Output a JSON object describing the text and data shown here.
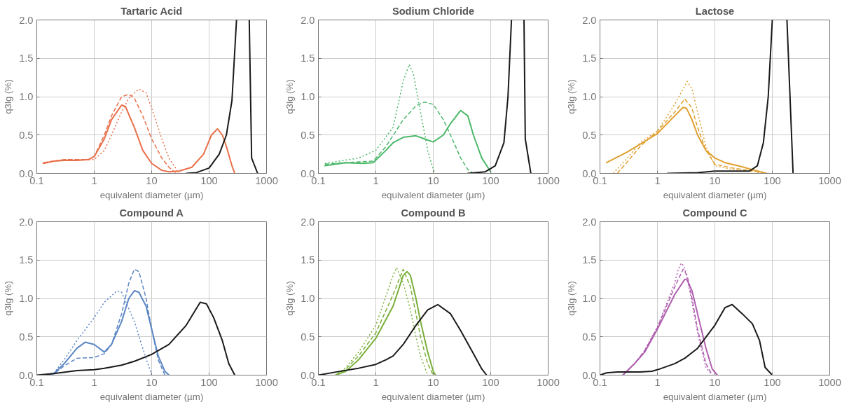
{
  "chart_data": [
    {
      "type": "line",
      "title": "Tartaric Acid",
      "xlabel": "equivalent diameter (µm)",
      "ylabel": "q3lg (%)",
      "log": "x",
      "xlim": [
        0.1,
        1000
      ],
      "ylim": [
        0,
        2
      ],
      "xticks": [
        0.1,
        1,
        10,
        100,
        1000
      ],
      "yticks": [
        {
          "value": 0,
          "label": "0.0"
        },
        {
          "value": 0.5,
          "label": "0.5"
        },
        {
          "value": 1,
          "label": "1.0"
        },
        {
          "value": 1.5,
          "label": "1.5"
        },
        {
          "value": 2,
          "label": "2.0"
        }
      ],
      "grid": true,
      "series": [
        {
          "color": "#e8704a",
          "line_style": "solid",
          "x": [
            0.13,
            0.2,
            0.3,
            0.5,
            0.8,
            1,
            1.5,
            2,
            3,
            3.5,
            5,
            7,
            10,
            15,
            20,
            30,
            50,
            80,
            110,
            140,
            170,
            200,
            250,
            280
          ],
          "values": [
            0.13,
            0.16,
            0.17,
            0.17,
            0.18,
            0.22,
            0.45,
            0.7,
            0.89,
            0.87,
            0.6,
            0.3,
            0.13,
            0.04,
            0.02,
            0.03,
            0.08,
            0.25,
            0.5,
            0.58,
            0.5,
            0.35,
            0.1,
            0
          ]
        },
        {
          "color": "#e8704a",
          "line_style": "dashed",
          "x": [
            0.13,
            0.3,
            0.8,
            1,
            1.5,
            2,
            3,
            4,
            5,
            7,
            10,
            15,
            20,
            25,
            30
          ],
          "values": [
            0.14,
            0.18,
            0.18,
            0.22,
            0.5,
            0.75,
            1.0,
            1.03,
            0.98,
            0.75,
            0.45,
            0.2,
            0.08,
            0.02,
            0
          ]
        },
        {
          "color": "#e8704a",
          "line_style": "dotted",
          "x": [
            0.13,
            0.3,
            1,
            1.5,
            2,
            3,
            4,
            6,
            8,
            10,
            15,
            20,
            30
          ],
          "values": [
            0.14,
            0.18,
            0.18,
            0.3,
            0.5,
            0.8,
            0.98,
            1.1,
            1.05,
            0.85,
            0.45,
            0.2,
            0
          ]
        },
        {
          "color": "#1a1a1a",
          "line_style": "solid",
          "x": [
            40,
            60,
            100,
            150,
            200,
            250,
            300,
            400,
            500,
            550,
            700
          ],
          "values": [
            0,
            0.01,
            0.07,
            0.25,
            0.5,
            0.95,
            2.0,
            null,
            2.0,
            0.2,
            0
          ]
        }
      ]
    },
    {
      "type": "line",
      "title": "Sodium Chloride",
      "xlabel": "equivalent diameter (µm)",
      "ylabel": "q3lg (%)",
      "log": "x",
      "xlim": [
        0.1,
        1000
      ],
      "ylim": [
        0,
        2
      ],
      "xticks": [
        0.1,
        1,
        10,
        100,
        1000
      ],
      "yticks": [
        {
          "value": 0,
          "label": "0.0"
        },
        {
          "value": 0.5,
          "label": "0.5"
        },
        {
          "value": 1,
          "label": "1.0"
        },
        {
          "value": 1.5,
          "label": "1.5"
        },
        {
          "value": 2,
          "label": "2.0"
        }
      ],
      "grid": true,
      "series": [
        {
          "color": "#4cb86a",
          "line_style": "solid",
          "x": [
            0.13,
            0.3,
            0.6,
            0.9,
            1.5,
            2,
            3,
            5,
            7,
            10,
            15,
            20,
            30,
            40,
            50,
            70,
            100
          ],
          "values": [
            0.1,
            0.14,
            0.13,
            0.14,
            0.3,
            0.4,
            0.47,
            0.49,
            0.45,
            0.41,
            0.5,
            0.65,
            0.82,
            0.75,
            0.5,
            0.2,
            0.02
          ]
        },
        {
          "color": "#4cb86a",
          "line_style": "dashed",
          "x": [
            0.13,
            0.3,
            0.9,
            1.5,
            3,
            5,
            7,
            10,
            15,
            20,
            30,
            40,
            50
          ],
          "values": [
            0.12,
            0.14,
            0.16,
            0.35,
            0.7,
            0.88,
            0.93,
            0.9,
            0.7,
            0.5,
            0.2,
            0.05,
            0
          ]
        },
        {
          "color": "#4cb86a",
          "line_style": "dotted",
          "x": [
            0.13,
            0.5,
            1,
            2,
            3,
            3.8,
            4.5,
            6,
            8,
            10,
            11
          ],
          "values": [
            0.13,
            0.2,
            0.3,
            0.6,
            1.2,
            1.42,
            1.3,
            0.8,
            0.3,
            0.05,
            0
          ]
        },
        {
          "color": "#1a1a1a",
          "line_style": "solid",
          "x": [
            40,
            80,
            120,
            170,
            200,
            230,
            300,
            380,
            400,
            500
          ],
          "values": [
            0,
            0.02,
            0.1,
            0.4,
            1.0,
            2.0,
            null,
            2.0,
            0.45,
            0
          ]
        }
      ]
    },
    {
      "type": "line",
      "title": "Lactose",
      "xlabel": "equivalent diameter (µm)",
      "ylabel": "q3lg (%)",
      "log": "x",
      "xlim": [
        0.1,
        1000
      ],
      "ylim": [
        0,
        2
      ],
      "xticks": [
        0.1,
        1,
        10,
        100,
        1000
      ],
      "yticks": [
        {
          "value": 0,
          "label": "0.0"
        },
        {
          "value": 0.5,
          "label": "0.5"
        },
        {
          "value": 1,
          "label": "1.0"
        },
        {
          "value": 1.5,
          "label": "1.5"
        },
        {
          "value": 2,
          "label": "2.0"
        }
      ],
      "grid": true,
      "series": [
        {
          "color": "#e0a030",
          "line_style": "solid",
          "x": [
            0.13,
            0.3,
            0.5,
            1,
            2,
            2.8,
            3.2,
            4,
            5,
            7,
            10,
            15,
            25,
            50,
            80
          ],
          "values": [
            0.14,
            0.28,
            0.38,
            0.52,
            0.75,
            0.86,
            0.85,
            0.7,
            0.5,
            0.3,
            0.2,
            0.14,
            0.1,
            0.04,
            0
          ]
        },
        {
          "color": "#e0a030",
          "line_style": "dashed",
          "x": [
            0.2,
            0.3,
            0.5,
            1,
            2,
            3,
            4,
            5,
            7,
            10,
            20,
            50,
            70
          ],
          "values": [
            0,
            0.15,
            0.35,
            0.55,
            0.8,
            0.97,
            0.85,
            0.6,
            0.3,
            0.12,
            0.07,
            0.03,
            0
          ]
        },
        {
          "color": "#e0a030",
          "line_style": "dotted",
          "x": [
            0.17,
            0.3,
            0.5,
            1,
            2,
            3.3,
            4,
            5,
            7,
            10,
            20,
            50,
            80
          ],
          "values": [
            0,
            0.2,
            0.4,
            0.55,
            0.9,
            1.2,
            1.1,
            0.8,
            0.35,
            0.1,
            0.05,
            0.02,
            0
          ]
        },
        {
          "color": "#1a1a1a",
          "line_style": "solid",
          "x": [
            1.5,
            5,
            10,
            40,
            55,
            70,
            85,
            100,
            140,
            180,
            230
          ],
          "values": [
            0,
            0.01,
            0.03,
            0.03,
            0.1,
            0.4,
            1.0,
            2.0,
            null,
            2.0,
            0
          ]
        }
      ]
    },
    {
      "type": "line",
      "title": "Compound A",
      "xlabel": "equivalent diameter (µm)",
      "ylabel": "q3lg (%)",
      "log": "x",
      "xlim": [
        0.1,
        1000
      ],
      "ylim": [
        0,
        2
      ],
      "xticks": [
        0.1,
        1,
        10,
        100,
        1000
      ],
      "yticks": [
        {
          "value": 0,
          "label": "0.0"
        },
        {
          "value": 0.5,
          "label": "0.5"
        },
        {
          "value": 1,
          "label": "1.0"
        },
        {
          "value": 1.5,
          "label": "1.5"
        },
        {
          "value": 2,
          "label": "2.0"
        }
      ],
      "grid": true,
      "series": [
        {
          "color": "#5b86c4",
          "line_style": "solid",
          "x": [
            0.13,
            0.2,
            0.3,
            0.5,
            0.7,
            1,
            1.5,
            2,
            3,
            4,
            5,
            6,
            8,
            10,
            13,
            17,
            20
          ],
          "values": [
            0,
            0.02,
            0.15,
            0.35,
            0.43,
            0.4,
            0.3,
            0.4,
            0.7,
            1.0,
            1.1,
            1.08,
            0.9,
            0.6,
            0.25,
            0.05,
            0
          ]
        },
        {
          "color": "#5b86c4",
          "line_style": "dashed",
          "x": [
            0.13,
            0.2,
            0.3,
            0.5,
            1,
            1.5,
            2,
            3,
            4,
            5,
            6,
            8,
            10,
            13,
            17
          ],
          "values": [
            0,
            0.02,
            0.12,
            0.22,
            0.23,
            0.28,
            0.4,
            0.8,
            1.2,
            1.38,
            1.35,
            1.0,
            0.6,
            0.2,
            0
          ]
        },
        {
          "color": "#5b86c4",
          "line_style": "dotted",
          "x": [
            0.13,
            0.2,
            0.3,
            0.5,
            1,
            1.5,
            2.5,
            3,
            5,
            7,
            10
          ],
          "values": [
            0,
            0.03,
            0.2,
            0.45,
            0.75,
            0.95,
            1.1,
            1.08,
            0.7,
            0.35,
            0
          ]
        },
        {
          "color": "#1a1a1a",
          "line_style": "solid",
          "x": [
            0.1,
            0.2,
            0.5,
            1,
            1.5,
            3,
            5,
            10,
            20,
            40,
            70,
            90,
            120,
            170,
            220,
            280
          ],
          "values": [
            0,
            0.02,
            0.06,
            0.07,
            0.09,
            0.13,
            0.18,
            0.27,
            0.4,
            0.65,
            0.95,
            0.93,
            0.75,
            0.45,
            0.15,
            0
          ]
        }
      ]
    },
    {
      "type": "line",
      "title": "Compound B",
      "xlabel": "equivalent diameter (µm)",
      "ylabel": "q3lg (%)",
      "log": "x",
      "xlim": [
        0.1,
        1000
      ],
      "ylim": [
        0,
        2
      ],
      "xticks": [
        0.1,
        1,
        10,
        100,
        1000
      ],
      "yticks": [
        {
          "value": 0,
          "label": "0.0"
        },
        {
          "value": 0.5,
          "label": "0.5"
        },
        {
          "value": 1,
          "label": "1.0"
        },
        {
          "value": 1.5,
          "label": "1.5"
        },
        {
          "value": 2,
          "label": "2.0"
        }
      ],
      "grid": true,
      "series": [
        {
          "color": "#7ab03a",
          "line_style": "solid",
          "x": [
            0.2,
            0.3,
            0.5,
            1,
            2,
            3,
            3.5,
            4,
            5,
            6,
            8,
            10,
            11
          ],
          "values": [
            0,
            0.05,
            0.2,
            0.48,
            0.9,
            1.3,
            1.35,
            1.3,
            1.0,
            0.7,
            0.3,
            0.05,
            0
          ]
        },
        {
          "color": "#7ab03a",
          "line_style": "dashed",
          "x": [
            0.2,
            0.3,
            0.5,
            1,
            2,
            3,
            4,
            5,
            6,
            8,
            10
          ],
          "values": [
            0,
            0.08,
            0.25,
            0.55,
            1.05,
            1.38,
            1.15,
            0.8,
            0.5,
            0.15,
            0
          ]
        },
        {
          "color": "#7ab03a",
          "line_style": "dotted",
          "x": [
            0.2,
            0.3,
            0.5,
            1,
            2,
            2.3,
            3,
            4,
            5,
            6,
            8
          ],
          "values": [
            0,
            0.1,
            0.3,
            0.65,
            1.3,
            1.4,
            1.2,
            0.85,
            0.5,
            0.25,
            0
          ]
        },
        {
          "color": "#1a1a1a",
          "line_style": "solid",
          "x": [
            0.1,
            0.2,
            0.5,
            1,
            1.5,
            2,
            3,
            5,
            8,
            12,
            20,
            30,
            50,
            70,
            85
          ],
          "values": [
            0,
            0.04,
            0.09,
            0.14,
            0.2,
            0.25,
            0.4,
            0.65,
            0.85,
            0.92,
            0.8,
            0.58,
            0.28,
            0.08,
            0
          ]
        }
      ]
    },
    {
      "type": "line",
      "title": "Compound C",
      "xlabel": "equivalent diameter (µm)",
      "ylabel": "q3lg (%)",
      "log": "x",
      "xlim": [
        0.1,
        1000
      ],
      "ylim": [
        0,
        2
      ],
      "xticks": [
        0.1,
        1,
        10,
        100,
        1000
      ],
      "yticks": [
        {
          "value": 0,
          "label": "0.0"
        },
        {
          "value": 0.5,
          "label": "0.5"
        },
        {
          "value": 1,
          "label": "1.0"
        },
        {
          "value": 1.5,
          "label": "1.5"
        },
        {
          "value": 2,
          "label": "2.0"
        }
      ],
      "grid": true,
      "series": [
        {
          "color": "#b060b0",
          "line_style": "solid",
          "x": [
            0.25,
            0.4,
            0.6,
            1,
            2,
            3,
            3.3,
            4,
            5,
            7,
            9,
            11
          ],
          "values": [
            0,
            0.15,
            0.3,
            0.6,
            1.05,
            1.25,
            1.24,
            1.1,
            0.8,
            0.35,
            0.08,
            0
          ]
        },
        {
          "color": "#b060b0",
          "line_style": "dashed",
          "x": [
            0.25,
            0.4,
            0.6,
            1,
            2,
            2.8,
            3.3,
            4,
            5,
            7,
            9
          ],
          "values": [
            0,
            0.15,
            0.32,
            0.62,
            1.15,
            1.38,
            1.3,
            1.0,
            0.6,
            0.15,
            0
          ]
        },
        {
          "color": "#b060b0",
          "line_style": "dotted",
          "x": [
            0.25,
            0.4,
            0.6,
            1,
            2,
            2.3,
            2.6,
            2.9,
            3.2,
            4,
            5,
            7,
            9
          ],
          "values": [
            0,
            0.15,
            0.32,
            0.63,
            1.2,
            1.38,
            1.46,
            1.42,
            1.3,
            0.95,
            0.55,
            0.1,
            0
          ]
        },
        {
          "color": "#1a1a1a",
          "line_style": "solid",
          "x": [
            0.1,
            0.13,
            0.2,
            0.5,
            0.8,
            1,
            2,
            3,
            5,
            10,
            15,
            20,
            30,
            45,
            60,
            75,
            100
          ],
          "values": [
            0,
            0.03,
            0.04,
            0.04,
            0.05,
            0.07,
            0.15,
            0.22,
            0.35,
            0.65,
            0.88,
            0.92,
            0.8,
            0.67,
            0.45,
            0.1,
            0
          ]
        }
      ]
    }
  ]
}
